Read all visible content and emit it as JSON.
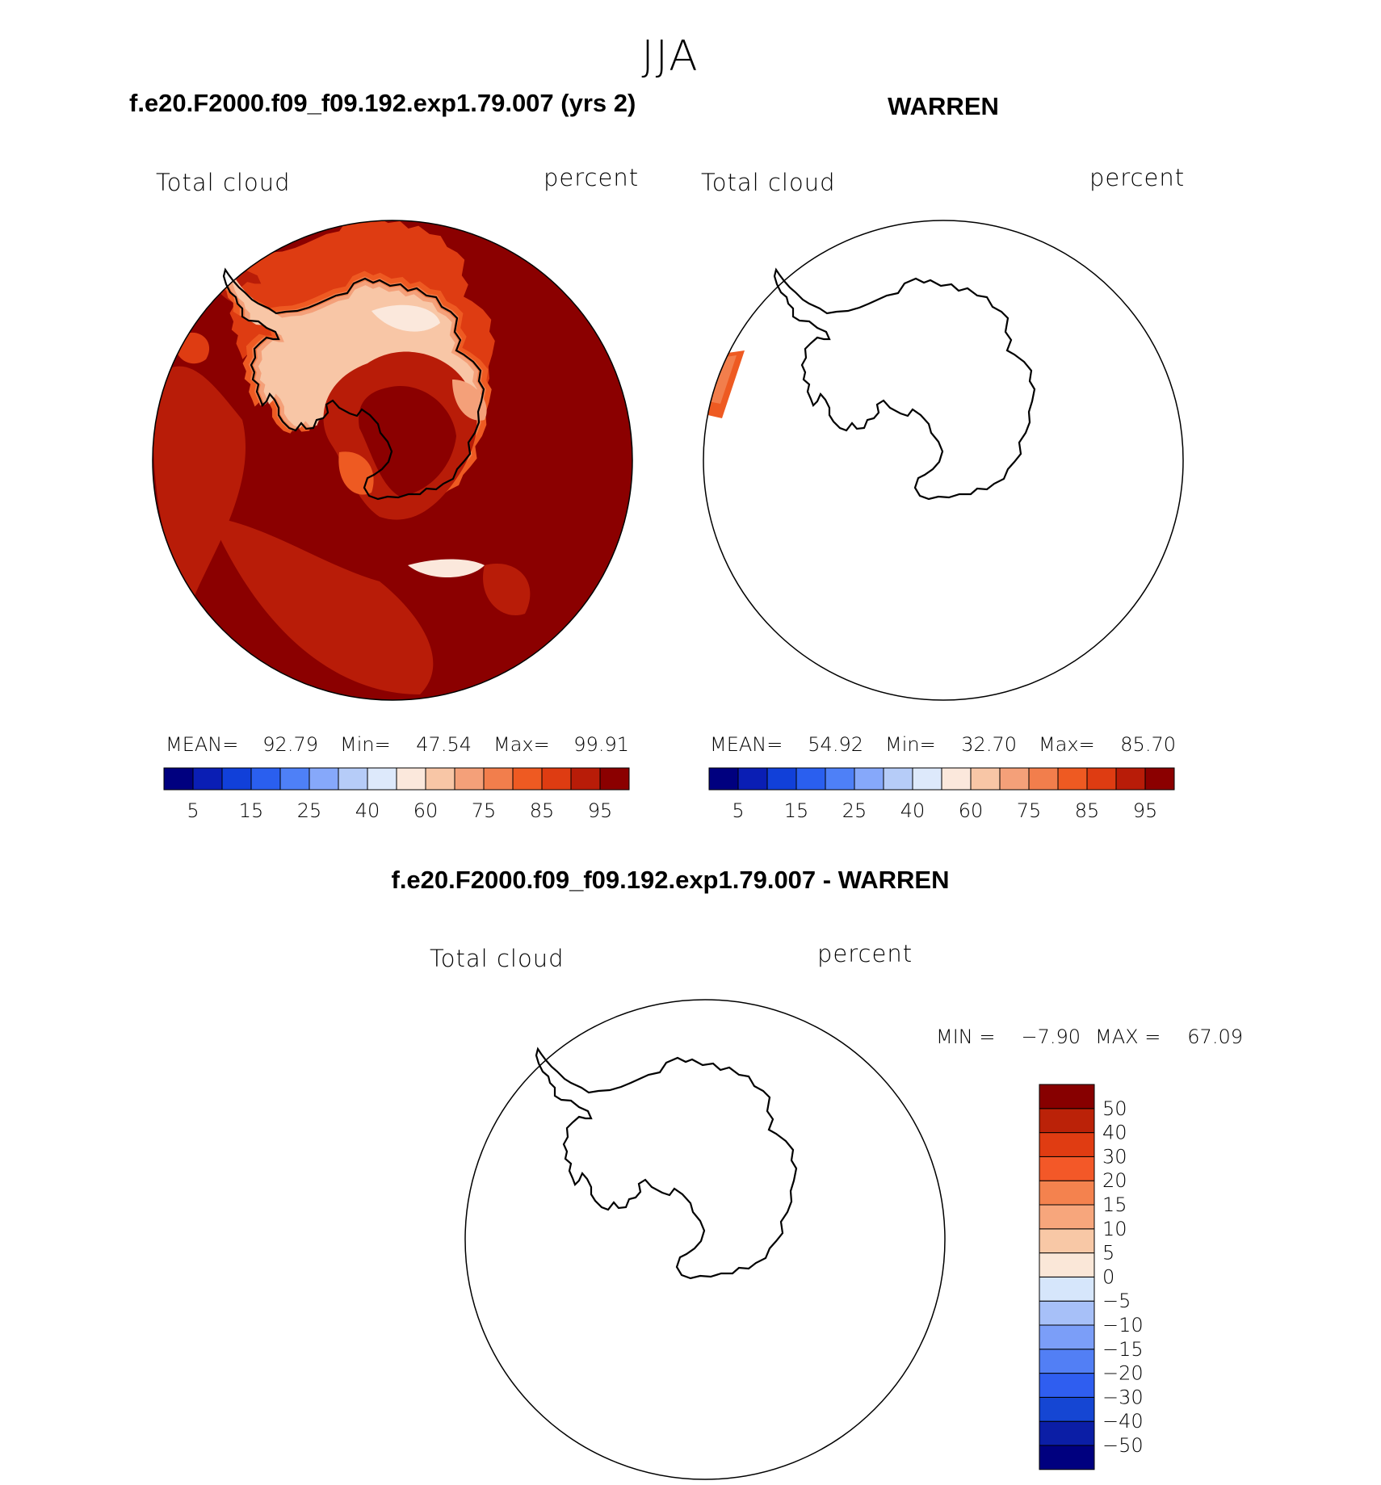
{
  "page": {
    "season": "JJA",
    "diff_title": "f.e20.F2000.f09_f09.192.exp1.79.007 - WARREN"
  },
  "colors": {
    "sequential": [
      "#00007f",
      "#0a1eb4",
      "#1140d9",
      "#2a5fef",
      "#4e80f7",
      "#86a8fa",
      "#b6ccf8",
      "#dde9fb",
      "#fbe8dc",
      "#f8c6a6",
      "#f4a079",
      "#f27e4c",
      "#ee5a22",
      "#de3c12",
      "#b81c08",
      "#8b0000"
    ],
    "diverging": [
      "#00007f",
      "#0b1ea6",
      "#1546d3",
      "#2f5ef0",
      "#527ff5",
      "#7b9ef8",
      "#a7c0f8",
      "#d6e6fb",
      "#fae7d8",
      "#f8c8a6",
      "#f7a67c",
      "#f4824e",
      "#f35828",
      "#e03c12",
      "#bb2208",
      "#870000"
    ],
    "coast": "#000000"
  },
  "panels": [
    {
      "title": "f.e20.F2000.f09_f09.192.exp1.79.007 (yrs 2)",
      "left_label": "Total cloud",
      "right_label": "percent",
      "stats": {
        "mean_label": "MEAN=",
        "mean": "92.79",
        "min_label": "Min=",
        "min": "47.54",
        "max_label": "Max=",
        "max": "99.91"
      },
      "colorbar_ticks": [
        "5",
        "15",
        "25",
        "40",
        "60",
        "75",
        "85",
        "95"
      ]
    },
    {
      "title": "WARREN",
      "left_label": "Total cloud",
      "right_label": "percent",
      "stats": {
        "mean_label": "MEAN=",
        "mean": "54.92",
        "min_label": "Min=",
        "min": "32.70",
        "max_label": "Max=",
        "max": "85.70"
      },
      "colorbar_ticks": [
        "5",
        "15",
        "25",
        "40",
        "60",
        "75",
        "85",
        "95"
      ]
    },
    {
      "left_label": "Total cloud",
      "right_label": "percent",
      "stats": {
        "min_label": "MIN =",
        "min": "−7.90",
        "max_label": "MAX =",
        "max": "67.09"
      },
      "colorbar_ticks": [
        "50",
        "40",
        "30",
        "20",
        "15",
        "10",
        "5",
        "0",
        "−5",
        "−10",
        "−15",
        "−20",
        "−30",
        "−40",
        "−50"
      ]
    }
  ]
}
